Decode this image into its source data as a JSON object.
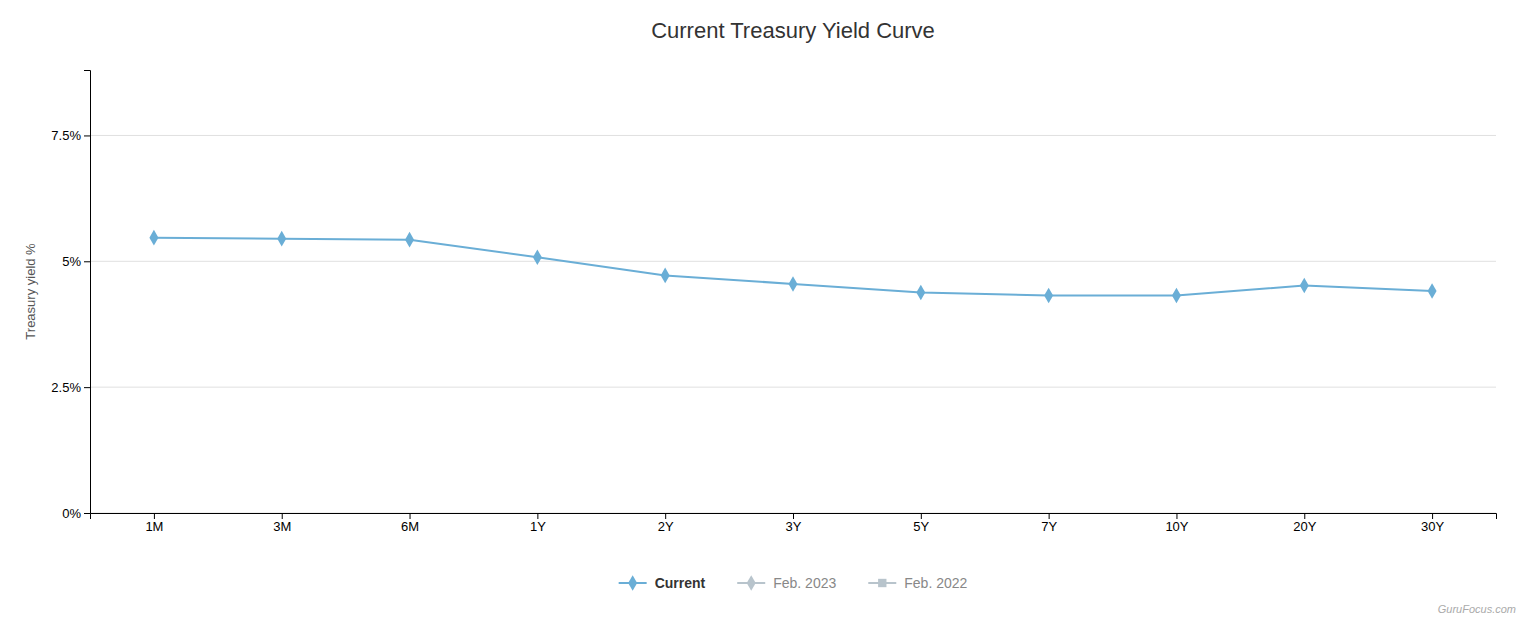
{
  "chart_data": {
    "type": "line",
    "title": "Current Treasury Yield Curve",
    "ylabel": "Treasury yield %",
    "categories": [
      "1M",
      "3M",
      "6M",
      "1Y",
      "2Y",
      "3Y",
      "5Y",
      "7Y",
      "10Y",
      "20Y",
      "30Y"
    ],
    "series": [
      {
        "name": "Current",
        "color": "#6aaed6",
        "marker": "diamond",
        "values": [
          5.47,
          5.45,
          5.43,
          5.08,
          4.72,
          4.55,
          4.38,
          4.32,
          4.32,
          4.52,
          4.41
        ]
      },
      {
        "name": "Feb. 2023",
        "color": "#b8c4cc",
        "marker": "diamond",
        "values": [
          null,
          null,
          null,
          null,
          null,
          null,
          null,
          null,
          null,
          null,
          null
        ]
      },
      {
        "name": "Feb. 2022",
        "color": "#b8c4cc",
        "marker": "square",
        "values": [
          null,
          null,
          null,
          null,
          null,
          null,
          null,
          null,
          null,
          null,
          null
        ]
      }
    ],
    "ylim": [
      0,
      8.8
    ],
    "yticks": [
      {
        "value": 0,
        "label": "0%"
      },
      {
        "value": 2.5,
        "label": "2.5%"
      },
      {
        "value": 5,
        "label": "5%"
      },
      {
        "value": 7.5,
        "label": "7.5%"
      }
    ],
    "grid": true,
    "legend": "bottom",
    "annotations": [
      "GuruFocus.com"
    ]
  }
}
